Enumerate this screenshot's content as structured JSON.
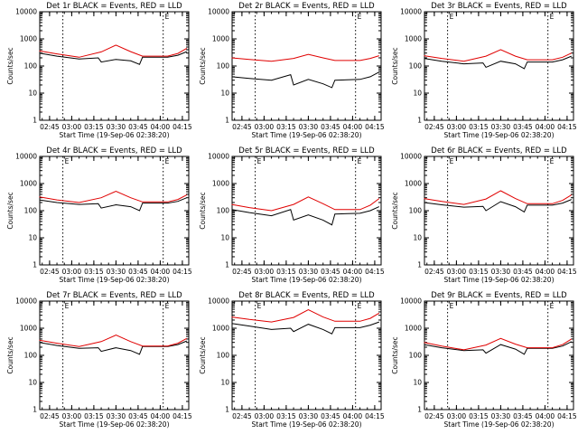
{
  "page": {
    "series_colors": {
      "events": "#000000",
      "lld": "#e00000"
    }
  },
  "chart_data": [
    {
      "type": "line",
      "title": "Det 1r BLACK = Events, RED = LLD",
      "xlabel": "Start Time (19-Sep-06 02:38:20)",
      "ylabel": "Counts/sec",
      "yscale": "log",
      "ylim": [
        1,
        10000
      ],
      "yticks": [
        "1",
        "10",
        "100",
        "1000",
        "10000"
      ],
      "xlim": [
        "02:38:20",
        "04:19:20"
      ],
      "xticks": [
        "02:45",
        "03:00",
        "03:15",
        "03:30",
        "03:45",
        "04:00",
        "04:15"
      ],
      "dotted_vlines": [
        "02:54",
        "04:02"
      ],
      "corner_marks": [
        "",
        "E"
      ],
      "series": [
        {
          "name": "Events",
          "color": "#000000",
          "x": [
            "02:38",
            "02:50",
            "03:05",
            "03:18",
            "03:20",
            "03:30",
            "03:40",
            "03:46",
            "03:48",
            "04:05",
            "04:12",
            "04:18"
          ],
          "values": [
            300,
            230,
            180,
            200,
            140,
            175,
            155,
            115,
            210,
            210,
            250,
            340
          ]
        },
        {
          "name": "LLD",
          "color": "#e00000",
          "x": [
            "02:38",
            "02:50",
            "03:05",
            "03:20",
            "03:30",
            "03:40",
            "03:48",
            "04:05",
            "04:12",
            "04:18"
          ],
          "values": [
            360,
            280,
            210,
            330,
            590,
            340,
            230,
            230,
            290,
            450
          ]
        }
      ]
    },
    {
      "type": "line",
      "title": "Det 2r BLACK = Events, RED = LLD",
      "xlabel": "Start Time (19-Sep-06 02:38:20)",
      "ylabel": "Counts/sec",
      "yscale": "log",
      "ylim": [
        1,
        10000
      ],
      "yticks": [
        "1",
        "10",
        "100",
        "1000",
        "10000"
      ],
      "xlim": [
        "02:38:20",
        "04:19:20"
      ],
      "xticks": [
        "02:45",
        "03:00",
        "03:15",
        "03:30",
        "03:45",
        "04:00",
        "04:15"
      ],
      "dotted_vlines": [
        "02:54",
        "04:02"
      ],
      "corner_marks": [
        "",
        "E"
      ],
      "series": [
        {
          "name": "Events",
          "color": "#000000",
          "x": [
            "02:38",
            "02:50",
            "03:05",
            "03:18",
            "03:20",
            "03:30",
            "03:40",
            "03:46",
            "03:48",
            "04:05",
            "04:12",
            "04:18"
          ],
          "values": [
            40,
            35,
            30,
            48,
            20,
            32,
            22,
            16,
            30,
            32,
            40,
            60
          ]
        },
        {
          "name": "LLD",
          "color": "#e00000",
          "x": [
            "02:38",
            "02:50",
            "03:05",
            "03:20",
            "03:30",
            "03:40",
            "03:48",
            "04:05",
            "04:12",
            "04:18"
          ],
          "values": [
            200,
            175,
            150,
            190,
            270,
            200,
            160,
            160,
            190,
            240
          ]
        }
      ]
    },
    {
      "type": "line",
      "title": "Det 3r BLACK = Events, RED = LLD",
      "xlabel": "Start Time (19-Sep-06 02:38:20)",
      "ylabel": "Counts/sec",
      "yscale": "log",
      "ylim": [
        1,
        10000
      ],
      "yticks": [
        "1",
        "10",
        "100",
        "1000",
        "10000"
      ],
      "xlim": [
        "02:38:20",
        "04:19:20"
      ],
      "xticks": [
        "02:45",
        "03:00",
        "03:15",
        "03:30",
        "03:45",
        "04:00",
        "04:15"
      ],
      "dotted_vlines": [
        "02:54",
        "04:02"
      ],
      "corner_marks": [
        "E",
        "E"
      ],
      "series": [
        {
          "name": "Events",
          "color": "#000000",
          "x": [
            "02:38",
            "02:50",
            "03:05",
            "03:18",
            "03:20",
            "03:30",
            "03:40",
            "03:46",
            "03:48",
            "04:05",
            "04:12",
            "04:18"
          ],
          "values": [
            190,
            150,
            120,
            130,
            90,
            150,
            120,
            80,
            140,
            140,
            170,
            230
          ]
        },
        {
          "name": "LLD",
          "color": "#e00000",
          "x": [
            "02:38",
            "02:50",
            "03:05",
            "03:20",
            "03:30",
            "03:40",
            "03:48",
            "04:05",
            "04:12",
            "04:18"
          ],
          "values": [
            240,
            190,
            150,
            230,
            400,
            230,
            170,
            170,
            210,
            300
          ]
        }
      ]
    },
    {
      "type": "line",
      "title": "Det 4r BLACK = Events, RED = LLD",
      "xlabel": "Start Time (19-Sep-06 02:38:20)",
      "ylabel": "Counts/sec",
      "yscale": "log",
      "ylim": [
        1,
        10000
      ],
      "yticks": [
        "1",
        "10",
        "100",
        "1000",
        "10000"
      ],
      "xlim": [
        "02:38:20",
        "04:19:20"
      ],
      "xticks": [
        "02:45",
        "03:00",
        "03:15",
        "03:30",
        "03:45",
        "04:00",
        "04:15"
      ],
      "dotted_vlines": [
        "02:54",
        "04:02"
      ],
      "corner_marks": [
        "E",
        "E"
      ],
      "series": [
        {
          "name": "Events",
          "color": "#000000",
          "x": [
            "02:38",
            "02:50",
            "03:05",
            "03:18",
            "03:20",
            "03:30",
            "03:40",
            "03:46",
            "03:48",
            "04:05",
            "04:12",
            "04:18"
          ],
          "values": [
            250,
            200,
            170,
            180,
            125,
            165,
            140,
            100,
            190,
            190,
            220,
            300
          ]
        },
        {
          "name": "LLD",
          "color": "#e00000",
          "x": [
            "02:38",
            "02:50",
            "03:05",
            "03:20",
            "03:30",
            "03:40",
            "03:48",
            "04:05",
            "04:12",
            "04:18"
          ],
          "values": [
            320,
            250,
            200,
            300,
            520,
            300,
            210,
            210,
            260,
            380
          ]
        }
      ]
    },
    {
      "type": "line",
      "title": "Det 5r BLACK = Events, RED = LLD",
      "xlabel": "Start Time (19-Sep-06 02:38:20)",
      "ylabel": "Counts/sec",
      "yscale": "log",
      "ylim": [
        1,
        10000
      ],
      "yticks": [
        "1",
        "10",
        "100",
        "1000",
        "10000"
      ],
      "xlim": [
        "02:38:20",
        "04:19:20"
      ],
      "xticks": [
        "02:45",
        "03:00",
        "03:15",
        "03:30",
        "03:45",
        "04:00",
        "04:15"
      ],
      "dotted_vlines": [
        "02:54",
        "04:02"
      ],
      "corner_marks": [
        "E",
        "E"
      ],
      "series": [
        {
          "name": "Events",
          "color": "#000000",
          "x": [
            "02:38",
            "02:50",
            "03:05",
            "03:18",
            "03:20",
            "03:30",
            "03:40",
            "03:46",
            "03:48",
            "04:05",
            "04:12",
            "04:18"
          ],
          "values": [
            110,
            85,
            65,
            110,
            45,
            70,
            45,
            30,
            75,
            80,
            100,
            140
          ]
        },
        {
          "name": "LLD",
          "color": "#e00000",
          "x": [
            "02:38",
            "02:50",
            "03:05",
            "03:20",
            "03:30",
            "03:40",
            "03:48",
            "04:05",
            "04:12",
            "04:18"
          ],
          "values": [
            170,
            130,
            100,
            170,
            320,
            180,
            110,
            110,
            160,
            280
          ]
        }
      ]
    },
    {
      "type": "line",
      "title": "Det 6r BLACK = Events, RED = LLD",
      "xlabel": "Start Time (19-Sep-06 02:38:20)",
      "ylabel": "Counts/sec",
      "yscale": "log",
      "ylim": [
        1,
        10000
      ],
      "yticks": [
        "1",
        "10",
        "100",
        "1000",
        "10000"
      ],
      "xlim": [
        "02:38:20",
        "04:19:20"
      ],
      "xticks": [
        "02:45",
        "03:00",
        "03:15",
        "03:30",
        "03:45",
        "04:00",
        "04:15"
      ],
      "dotted_vlines": [
        "02:54",
        "04:02"
      ],
      "corner_marks": [
        "E",
        "E"
      ],
      "series": [
        {
          "name": "Events",
          "color": "#000000",
          "x": [
            "02:38",
            "02:50",
            "03:05",
            "03:18",
            "03:20",
            "03:30",
            "03:40",
            "03:46",
            "03:48",
            "04:05",
            "04:12",
            "04:18"
          ],
          "values": [
            200,
            165,
            135,
            145,
            100,
            215,
            140,
            90,
            160,
            160,
            190,
            260
          ]
        },
        {
          "name": "LLD",
          "color": "#e00000",
          "x": [
            "02:38",
            "02:50",
            "03:05",
            "03:20",
            "03:30",
            "03:40",
            "03:48",
            "04:05",
            "04:12",
            "04:18"
          ],
          "values": [
            280,
            220,
            170,
            270,
            540,
            280,
            180,
            180,
            240,
            380
          ]
        }
      ]
    },
    {
      "type": "line",
      "title": "Det 7r BLACK = Events, RED = LLD",
      "xlabel": "Start Time (19-Sep-06 02:38:20)",
      "ylabel": "Counts/sec",
      "yscale": "log",
      "ylim": [
        1,
        10000
      ],
      "yticks": [
        "1",
        "10",
        "100",
        "1000",
        "10000"
      ],
      "xlim": [
        "02:38:20",
        "04:19:20"
      ],
      "xticks": [
        "02:45",
        "03:00",
        "03:15",
        "03:30",
        "03:45",
        "04:00",
        "04:15"
      ],
      "dotted_vlines": [
        "02:54",
        "04:02"
      ],
      "corner_marks": [
        "E",
        "E"
      ],
      "series": [
        {
          "name": "Events",
          "color": "#000000",
          "x": [
            "02:38",
            "02:50",
            "03:05",
            "03:18",
            "03:20",
            "03:30",
            "03:40",
            "03:46",
            "03:48",
            "04:05",
            "04:12",
            "04:18"
          ],
          "values": [
            300,
            230,
            180,
            190,
            140,
            190,
            150,
            110,
            210,
            210,
            250,
            340
          ]
        },
        {
          "name": "LLD",
          "color": "#e00000",
          "x": [
            "02:38",
            "02:50",
            "03:05",
            "03:20",
            "03:30",
            "03:40",
            "03:48",
            "04:05",
            "04:12",
            "04:18"
          ],
          "values": [
            360,
            280,
            210,
            320,
            560,
            320,
            220,
            220,
            280,
            420
          ]
        }
      ]
    },
    {
      "type": "line",
      "title": "Det 8r BLACK = Events, RED = LLD",
      "xlabel": "Start Time (19-Sep-06 02:38:20)",
      "ylabel": "Counts/sec",
      "yscale": "log",
      "ylim": [
        1,
        10000
      ],
      "yticks": [
        "1",
        "10",
        "100",
        "1000",
        "10000"
      ],
      "xlim": [
        "02:38:20",
        "04:19:20"
      ],
      "xticks": [
        "02:45",
        "03:00",
        "03:15",
        "03:30",
        "03:45",
        "04:00",
        "04:15"
      ],
      "dotted_vlines": [
        "02:54",
        "04:02"
      ],
      "corner_marks": [
        "E",
        "E"
      ],
      "series": [
        {
          "name": "Events",
          "color": "#000000",
          "x": [
            "02:38",
            "02:50",
            "03:05",
            "03:18",
            "03:20",
            "03:30",
            "03:40",
            "03:46",
            "03:48",
            "04:05",
            "04:12",
            "04:18"
          ],
          "values": [
            1500,
            1200,
            900,
            1000,
            750,
            1400,
            900,
            620,
            1050,
            1050,
            1300,
            1700
          ]
        },
        {
          "name": "LLD",
          "color": "#e00000",
          "x": [
            "02:38",
            "02:50",
            "03:05",
            "03:20",
            "03:30",
            "03:40",
            "03:48",
            "04:05",
            "04:12",
            "04:18"
          ],
          "values": [
            2600,
            2100,
            1700,
            2500,
            4800,
            2600,
            1800,
            1800,
            2300,
            3600
          ]
        }
      ]
    },
    {
      "type": "line",
      "title": "Det 9r BLACK = Events, RED = LLD",
      "xlabel": "Start Time (19-Sep-06 02:38:20)",
      "ylabel": "Counts/sec",
      "yscale": "log",
      "ylim": [
        1,
        10000
      ],
      "yticks": [
        "1",
        "10",
        "100",
        "1000",
        "10000"
      ],
      "xlim": [
        "02:38:20",
        "04:19:20"
      ],
      "xticks": [
        "02:45",
        "03:00",
        "03:15",
        "03:30",
        "03:45",
        "04:00",
        "04:15"
      ],
      "dotted_vlines": [
        "02:54",
        "04:02"
      ],
      "corner_marks": [
        "E",
        "E"
      ],
      "series": [
        {
          "name": "Events",
          "color": "#000000",
          "x": [
            "02:38",
            "02:50",
            "03:05",
            "03:18",
            "03:20",
            "03:30",
            "03:40",
            "03:46",
            "03:48",
            "04:05",
            "04:12",
            "04:18"
          ],
          "values": [
            250,
            190,
            150,
            160,
            120,
            250,
            170,
            110,
            180,
            180,
            220,
            320
          ]
        },
        {
          "name": "LLD",
          "color": "#e00000",
          "x": [
            "02:38",
            "02:50",
            "03:05",
            "03:20",
            "03:30",
            "03:40",
            "03:48",
            "04:05",
            "04:12",
            "04:18"
          ],
          "values": [
            300,
            220,
            160,
            240,
            420,
            260,
            190,
            190,
            250,
            400
          ]
        }
      ]
    }
  ]
}
